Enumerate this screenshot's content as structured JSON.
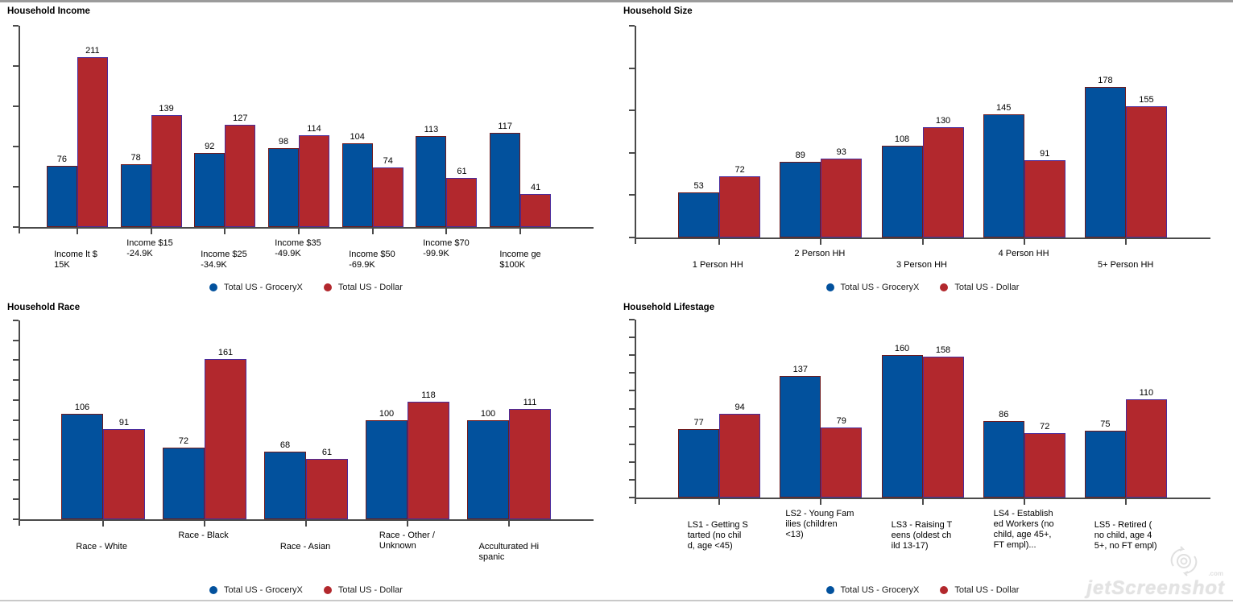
{
  "watermark": {
    "brand": "jetScreenshot",
    "tld": ".com"
  },
  "colors": {
    "grocery_blue": "#02519D",
    "dollar_red": "#B2282D",
    "grocery_blue_border": "#6E1A1D",
    "dollar_red_border": "#4A2B9B",
    "axis": "#4A4A4A"
  },
  "chart_data": [
    {
      "id": "household-income",
      "type": "bar",
      "title": "Household Income",
      "xlabel": "",
      "ylabel": "",
      "grid": false,
      "legend_position": "bottom",
      "value_labels": true,
      "ylim": [
        0,
        250
      ],
      "y_tick_interval": 50,
      "y_tick_count": 6,
      "y_axis_labels_visible": false,
      "categories": [
        [
          "Income lt $",
          "15K"
        ],
        [
          "Income $15",
          "-24.9K"
        ],
        [
          "Income $25",
          "-34.9K"
        ],
        [
          "Income $35",
          "-49.9K"
        ],
        [
          "Income $50",
          "-69.9K"
        ],
        [
          "Income $70",
          "-99.9K"
        ],
        [
          "Income ge",
          "$100K"
        ]
      ],
      "series": [
        {
          "name": "Total US - GroceryX",
          "color": "#02519D",
          "values": [
            76,
            78,
            92,
            98,
            104,
            113,
            117
          ]
        },
        {
          "name": "Total US - Dollar",
          "color": "#B2282D",
          "values": [
            211,
            139,
            127,
            114,
            74,
            61,
            41
          ]
        }
      ]
    },
    {
      "id": "household-size",
      "type": "bar",
      "title": "Household Size",
      "xlabel": "",
      "ylabel": "",
      "grid": false,
      "legend_position": "bottom",
      "value_labels": true,
      "ylim": [
        0,
        250
      ],
      "y_tick_interval": 50,
      "y_tick_count": 6,
      "y_axis_labels_visible": false,
      "categories": [
        [
          "1 Person HH"
        ],
        [
          "2 Person HH"
        ],
        [
          "3 Person HH"
        ],
        [
          "4 Person HH"
        ],
        [
          "5+ Person HH"
        ]
      ],
      "series": [
        {
          "name": "Total US - GroceryX",
          "color": "#02519D",
          "values": [
            53,
            89,
            108,
            145,
            178
          ]
        },
        {
          "name": "Total US - Dollar",
          "color": "#B2282D",
          "values": [
            72,
            93,
            130,
            91,
            155
          ]
        }
      ]
    },
    {
      "id": "household-race",
      "type": "bar",
      "title": "Household Race",
      "xlabel": "",
      "ylabel": "",
      "grid": false,
      "legend_position": "bottom",
      "value_labels": true,
      "ylim": [
        0,
        200
      ],
      "y_tick_interval": 20,
      "y_tick_count": 11,
      "y_axis_labels_visible": false,
      "categories": [
        [
          "Race - White"
        ],
        [
          "Race - Black"
        ],
        [
          "Race - Asian"
        ],
        [
          "Race - Other /",
          "Unknown"
        ],
        [
          "Acculturated Hi",
          "spanic"
        ]
      ],
      "series": [
        {
          "name": "Total US - GroceryX",
          "color": "#02519D",
          "values": [
            106,
            72,
            68,
            100,
            100
          ]
        },
        {
          "name": "Total US - Dollar",
          "color": "#B2282D",
          "values": [
            91,
            161,
            61,
            118,
            111
          ]
        }
      ]
    },
    {
      "id": "household-lifestage",
      "type": "bar",
      "title": "Household Lifestage",
      "xlabel": "",
      "ylabel": "",
      "grid": false,
      "legend_position": "bottom",
      "value_labels": true,
      "ylim": [
        0,
        200
      ],
      "y_tick_interval": 20,
      "y_tick_count": 11,
      "y_axis_labels_visible": false,
      "categories": [
        [
          "LS1 - Getting S",
          "tarted (no chil",
          "d, age <45)"
        ],
        [
          "LS2 - Young Fam",
          "ilies (children",
          "<13)"
        ],
        [
          "LS3 - Raising T",
          "eens (oldest ch",
          "ild 13-17)"
        ],
        [
          "LS4 - Establish",
          "ed Workers (no",
          "child, age 45+,",
          "FT empl)..."
        ],
        [
          "LS5 - Retired (",
          "no child, age 4",
          "5+, no FT empl)"
        ]
      ],
      "series": [
        {
          "name": "Total US - GroceryX",
          "color": "#02519D",
          "values": [
            77,
            137,
            160,
            86,
            75
          ]
        },
        {
          "name": "Total US - Dollar",
          "color": "#B2282D",
          "values": [
            94,
            79,
            158,
            72,
            110
          ]
        }
      ]
    }
  ]
}
